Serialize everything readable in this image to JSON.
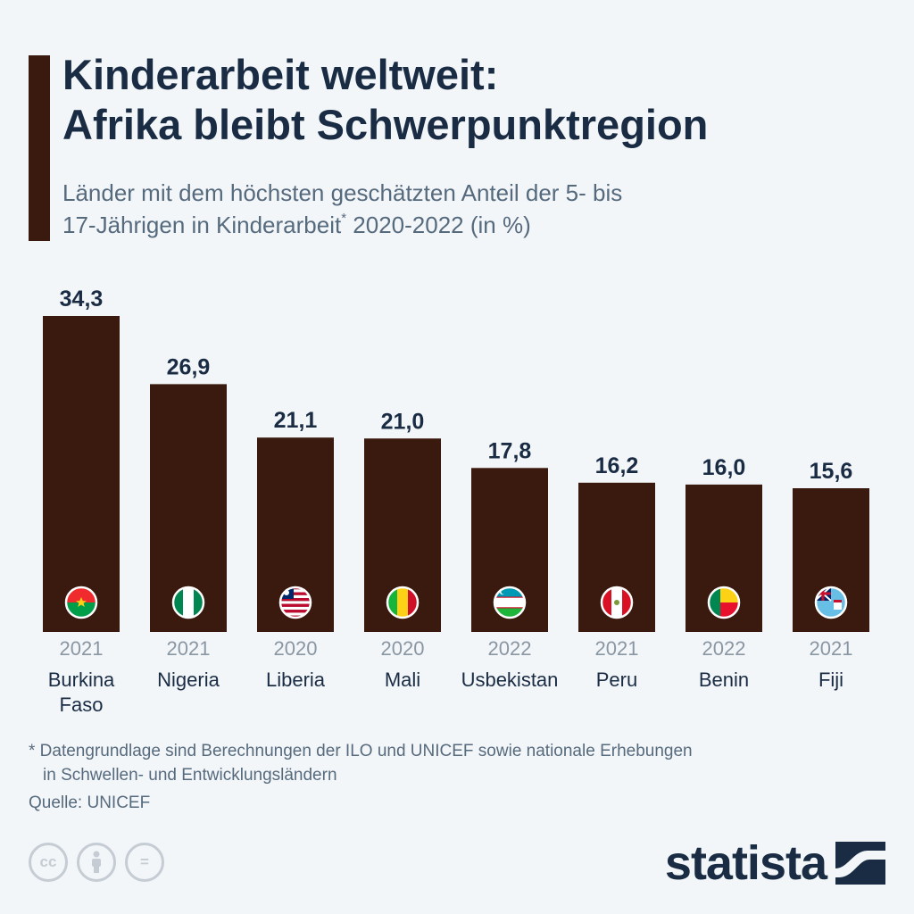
{
  "header": {
    "title_line1": "Kinderarbeit weltweit:",
    "title_line2": "Afrika bleibt Schwerpunktregion",
    "subtitle_line1": "Länder mit dem höchsten geschätzten Anteil der 5- bis",
    "subtitle_line2_a": "17-Jährigen in Kinderarbeit",
    "subtitle_sup": "*",
    "subtitle_line2_b": " 2020-2022 (in %)"
  },
  "colors": {
    "bar": "#3a1a0e",
    "title": "#1a2c44",
    "muted": "#566a7d",
    "year": "#8a97a3",
    "background": "#f3f6f9"
  },
  "chart_data": {
    "type": "bar",
    "categories": [
      "Burkina Faso",
      "Nigeria",
      "Liberia",
      "Mali",
      "Usbekistan",
      "Peru",
      "Benin",
      "Fiji"
    ],
    "category_lines": [
      [
        "Burkina",
        "Faso"
      ],
      [
        "Nigeria"
      ],
      [
        "Liberia"
      ],
      [
        "Mali"
      ],
      [
        "Usbekistan"
      ],
      [
        "Peru"
      ],
      [
        "Benin"
      ],
      [
        "Fiji"
      ]
    ],
    "years": [
      "2021",
      "2021",
      "2020",
      "2020",
      "2022",
      "2021",
      "2022",
      "2021"
    ],
    "values": [
      34.3,
      26.9,
      21.1,
      21.0,
      17.8,
      16.2,
      16.0,
      15.6
    ],
    "value_labels": [
      "34,3",
      "26,9",
      "21,1",
      "21,0",
      "17,8",
      "16,2",
      "16,0",
      "15,6"
    ],
    "flag_icons": [
      "burkina-faso-flag-icon",
      "nigeria-flag-icon",
      "liberia-flag-icon",
      "mali-flag-icon",
      "uzbekistan-flag-icon",
      "peru-flag-icon",
      "benin-flag-icon",
      "fiji-flag-icon"
    ],
    "ylim": [
      0,
      34.3
    ],
    "grid": false,
    "legend": "none"
  },
  "footer": {
    "footnote_line1": "* Datengrundlage sind Berechnungen der ILO und UNICEF sowie nationale Erhebungen",
    "footnote_line2": "in Schwellen- und Entwicklungsländern",
    "source": "Quelle: UNICEF",
    "license_icons": [
      "cc-icon",
      "attribution-icon",
      "no-derivatives-icon"
    ],
    "license_cc": "cc",
    "license_nd": "=",
    "brand": "statista"
  }
}
